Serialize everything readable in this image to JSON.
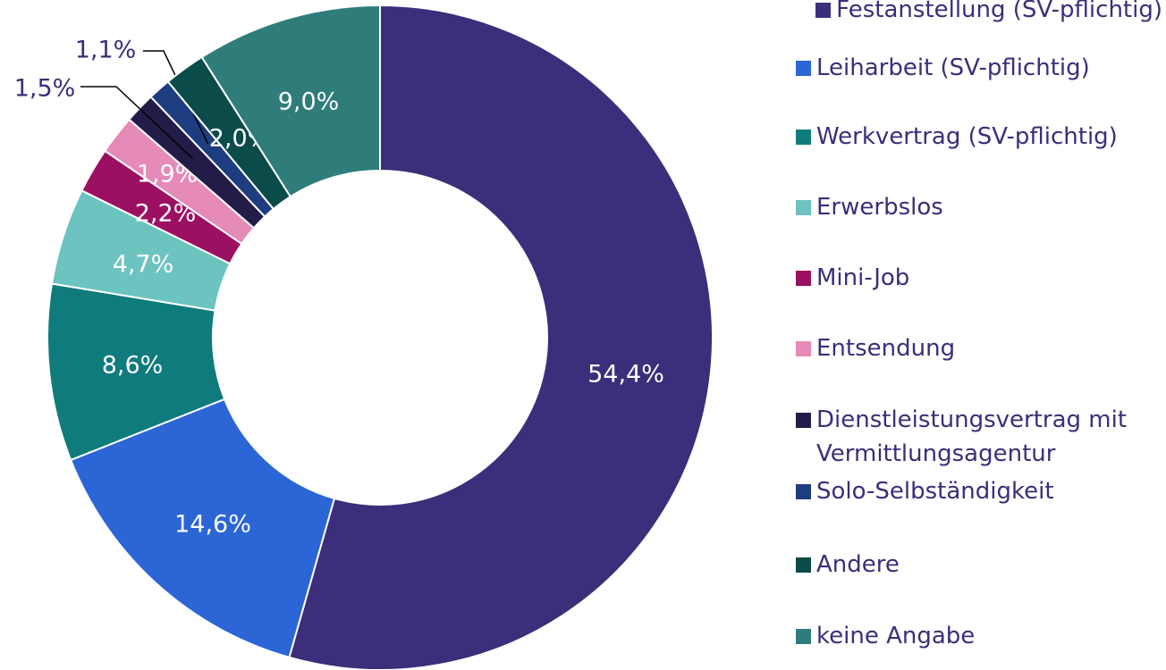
{
  "chart_data": {
    "type": "pie",
    "donut": true,
    "categories": [
      "Festanstellung (SV-pflichtig)",
      "Leiharbeit (SV-pflichtig)",
      "Werkvertrag (SV-pflichtig)",
      "Erwerbslos",
      "Mini-Job",
      "Entsendung",
      "Dienstleistungsvertrag mit Vermittlungsagentur",
      "Solo-Selbständigkeit",
      "Andere",
      "keine Angabe"
    ],
    "values": [
      54.4,
      14.6,
      8.6,
      4.7,
      2.2,
      1.9,
      1.5,
      1.1,
      2.0,
      9.0
    ],
    "value_labels": [
      "54,4%",
      "14,6%",
      "8,6%",
      "4,7%",
      "2,2%",
      "1,9%",
      "1,5%",
      "1,1%",
      "2,0%",
      "9,0%"
    ],
    "colors": [
      "#3b2e7a",
      "#2b65d6",
      "#0f7b7d",
      "#6cc3c0",
      "#9b1060",
      "#e68ab8",
      "#241c48",
      "#1d3d80",
      "#0b4b4a",
      "#2f7d7b"
    ],
    "legend": "right"
  }
}
